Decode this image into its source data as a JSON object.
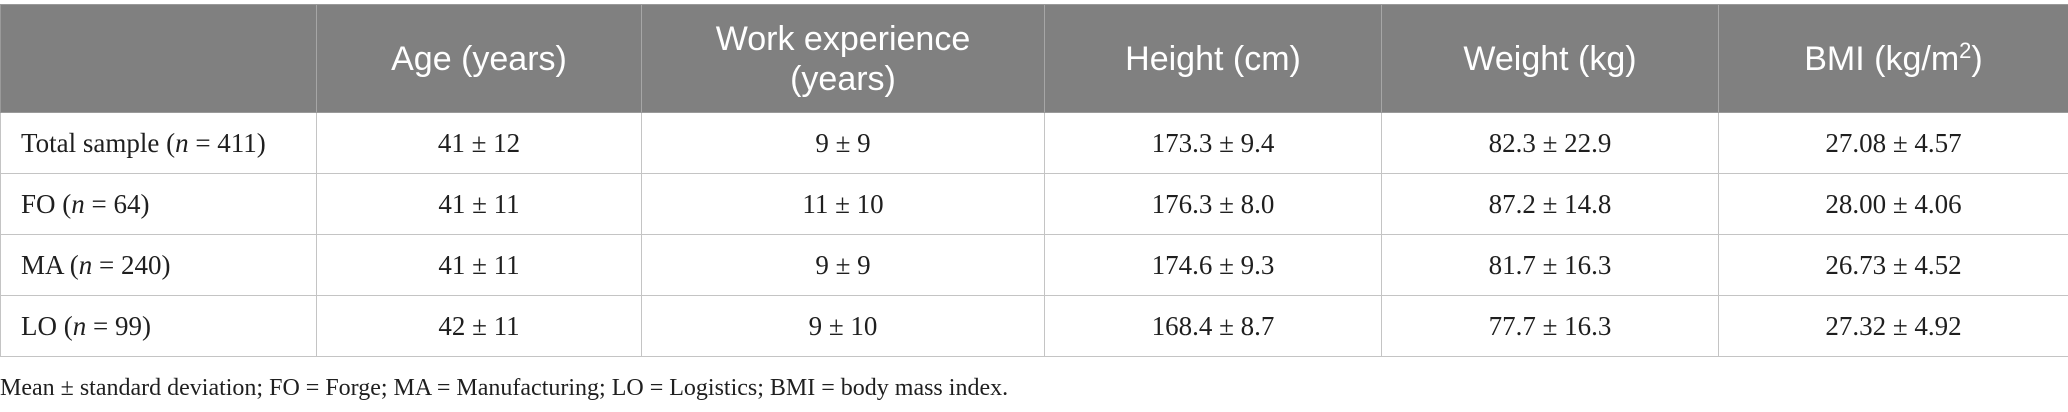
{
  "table": {
    "headers": [
      "",
      "Age (years)",
      "Work experience (years)",
      "Height (cm)",
      "Weight (kg)",
      "BMI (kg/m",
      "2",
      ")"
    ],
    "rows": [
      {
        "label_prefix": "Total sample (",
        "label_n": "n",
        "label_suffix": " = 411)",
        "cells": [
          "41 ± 12",
          "9 ± 9",
          "173.3 ± 9.4",
          "82.3 ± 22.9",
          "27.08 ± 4.57"
        ]
      },
      {
        "label_prefix": "FO (",
        "label_n": "n",
        "label_suffix": " = 64)",
        "cells": [
          "41 ± 11",
          "11 ± 10",
          "176.3 ± 8.0",
          "87.2 ± 14.8",
          "28.00 ± 4.06"
        ]
      },
      {
        "label_prefix": "MA (",
        "label_n": "n",
        "label_suffix": " = 240)",
        "cells": [
          "41 ± 11",
          "9 ± 9",
          "174.6 ± 9.3",
          "81.7 ± 16.3",
          "26.73 ± 4.52"
        ]
      },
      {
        "label_prefix": "LO (",
        "label_n": "n",
        "label_suffix": " = 99)",
        "cells": [
          "42 ± 11",
          "9 ± 10",
          "168.4 ± 8.7",
          "77.7 ± 16.3",
          "27.32 ± 4.92"
        ]
      }
    ]
  },
  "footnote": "Mean ± standard deviation; FO = Forge; MA = Manufacturing; LO = Logistics; BMI = body mass index.",
  "colors": {
    "header_bg": "#808080",
    "header_text": "#ffffff",
    "body_text": "#1f1f1f",
    "grid": "#c4c4c4"
  }
}
